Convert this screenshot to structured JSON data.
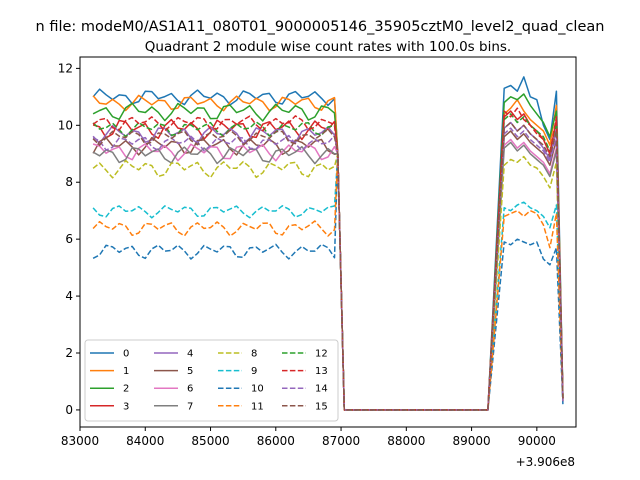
{
  "chart_data": {
    "type": "line",
    "suptitle": "n file: modeM0/AS1A11_080T01_9000005146_35905cztM0_level2_quad_clean",
    "title": "Quadrant 2 module wise count rates with 100.0s bins.",
    "xlabel": "",
    "ylabel": "",
    "x_offset_label": "+3.906e8",
    "xlim": [
      83000,
      90600
    ],
    "ylim": [
      -0.6,
      12.4
    ],
    "x_ticks": [
      83000,
      84000,
      85000,
      86000,
      87000,
      88000,
      89000,
      90000
    ],
    "x_tick_labels": [
      "83000",
      "84000",
      "85000",
      "86000",
      "87000",
      "88000",
      "89000",
      "90000"
    ],
    "y_ticks": [
      0,
      2,
      4,
      6,
      8,
      10,
      12
    ],
    "y_tick_labels": [
      "0",
      "2",
      "4",
      "6",
      "8",
      "10",
      "12"
    ],
    "grid": false,
    "legend": {
      "placement": "lower-left",
      "columns": 4
    },
    "segments": {
      "x_start": 83200,
      "x_end": 86900,
      "x_step": 100,
      "drop_x": [
        86950,
        87050
      ],
      "drop_y": [
        9.0,
        0
      ],
      "gap_x": [
        87050,
        89250
      ],
      "rise_x": 89400,
      "seg2_x": [
        89500,
        89600,
        89700,
        89800,
        89900,
        90000,
        90100,
        90200,
        90300,
        90400
      ]
    },
    "series": [
      {
        "name": "0",
        "color": "#1f77b4",
        "dash": "solid",
        "level": 11.0,
        "var": 0.3,
        "seg2": [
          11.3,
          11.4,
          11.2,
          11.7,
          11.0,
          10.9,
          10.0,
          9.5,
          11.2,
          0.5
        ]
      },
      {
        "name": "1",
        "color": "#ff7f0e",
        "dash": "solid",
        "level": 10.8,
        "var": 0.3,
        "seg2": [
          10.4,
          10.6,
          10.9,
          10.5,
          10.2,
          10.0,
          9.8,
          9.3,
          10.7,
          0.4
        ]
      },
      {
        "name": "2",
        "color": "#2ca02c",
        "dash": "solid",
        "level": 10.5,
        "var": 0.35,
        "seg2": [
          10.8,
          11.0,
          10.9,
          11.1,
          10.7,
          10.4,
          10.1,
          9.6,
          10.5,
          0.5
        ]
      },
      {
        "name": "3",
        "color": "#d62728",
        "dash": "solid",
        "level": 9.9,
        "var": 0.4,
        "seg2": [
          10.3,
          10.5,
          10.2,
          10.4,
          10.0,
          9.8,
          9.5,
          9.0,
          10.2,
          0.4
        ]
      },
      {
        "name": "4",
        "color": "#9467bd",
        "dash": "solid",
        "level": 9.7,
        "var": 0.35,
        "seg2": [
          9.9,
          10.1,
          9.8,
          10.0,
          9.7,
          9.5,
          9.2,
          8.8,
          9.9,
          0.4
        ]
      },
      {
        "name": "5",
        "color": "#8c564b",
        "dash": "solid",
        "level": 9.3,
        "var": 0.35,
        "seg2": [
          9.6,
          9.8,
          9.5,
          9.7,
          9.4,
          9.2,
          9.0,
          8.6,
          9.5,
          0.4
        ]
      },
      {
        "name": "6",
        "color": "#e377c2",
        "dash": "solid",
        "level": 9.1,
        "var": 0.35,
        "seg2": [
          9.3,
          9.5,
          9.2,
          9.4,
          9.1,
          8.9,
          8.7,
          8.3,
          9.2,
          0.3
        ]
      },
      {
        "name": "7",
        "color": "#7f7f7f",
        "dash": "solid",
        "level": 9.0,
        "var": 0.35,
        "seg2": [
          9.2,
          9.4,
          9.1,
          9.3,
          9.0,
          8.8,
          8.6,
          8.2,
          9.1,
          0.3
        ]
      },
      {
        "name": "8",
        "color": "#bcbd22",
        "dash": "dashed",
        "level": 8.5,
        "var": 0.35,
        "seg2": [
          8.6,
          8.8,
          8.7,
          8.9,
          8.6,
          8.5,
          8.2,
          7.8,
          8.7,
          0.3
        ]
      },
      {
        "name": "9",
        "color": "#17becf",
        "dash": "dashed",
        "level": 7.0,
        "var": 0.25,
        "seg2": [
          7.1,
          7.0,
          7.2,
          7.3,
          7.1,
          7.0,
          6.8,
          6.4,
          7.2,
          0.3
        ]
      },
      {
        "name": "10",
        "color": "#1f77b4",
        "dash": "dashed",
        "level": 5.6,
        "var": 0.3,
        "seg2": [
          5.9,
          5.8,
          6.0,
          5.9,
          5.8,
          5.9,
          5.3,
          5.1,
          5.7,
          0.2
        ]
      },
      {
        "name": "11",
        "color": "#ff7f0e",
        "dash": "dashed",
        "level": 6.4,
        "var": 0.3,
        "seg2": [
          6.8,
          6.9,
          7.0,
          6.8,
          7.0,
          6.9,
          6.5,
          5.7,
          6.9,
          0.3
        ]
      },
      {
        "name": "12",
        "color": "#2ca02c",
        "dash": "dashed",
        "level": 9.9,
        "var": 0.3,
        "seg2": [
          10.2,
          10.4,
          10.1,
          10.3,
          10.0,
          9.8,
          9.6,
          9.1,
          10.1,
          0.4
        ]
      },
      {
        "name": "13",
        "color": "#d62728",
        "dash": "dashed",
        "level": 10.1,
        "var": 0.3,
        "seg2": [
          10.5,
          10.3,
          10.6,
          10.2,
          10.0,
          9.7,
          9.5,
          9.0,
          10.3,
          0.4
        ]
      },
      {
        "name": "14",
        "color": "#9467bd",
        "dash": "dashed",
        "level": 9.4,
        "var": 0.3,
        "seg2": [
          9.7,
          9.9,
          9.6,
          9.8,
          9.5,
          9.3,
          9.1,
          8.7,
          9.6,
          0.3
        ]
      },
      {
        "name": "15",
        "color": "#8c564b",
        "dash": "dashed",
        "level": 9.6,
        "var": 0.3,
        "seg2": [
          9.9,
          10.1,
          9.8,
          10.0,
          9.7,
          9.5,
          9.3,
          8.9,
          9.8,
          0.4
        ]
      }
    ]
  }
}
